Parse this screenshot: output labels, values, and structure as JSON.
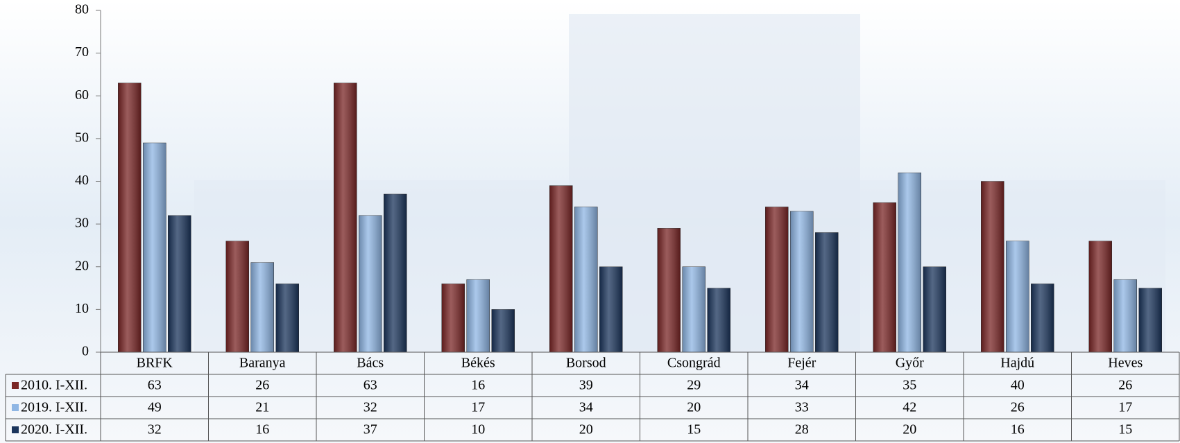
{
  "chart_data": {
    "type": "bar",
    "categories": [
      "BRFK",
      "Baranya",
      "Bács",
      "Békés",
      "Borsod",
      "Csongrád",
      "Fejér",
      "Győr",
      "Hajdú",
      "Heves"
    ],
    "series": [
      {
        "name": "2010. I-XII.",
        "color": "#7a2626",
        "values": [
          63,
          26,
          63,
          16,
          39,
          29,
          34,
          35,
          40,
          26
        ]
      },
      {
        "name": "2019. I-XII.",
        "color": "#8fb6e4",
        "values": [
          49,
          21,
          32,
          17,
          34,
          20,
          33,
          42,
          26,
          17
        ]
      },
      {
        "name": "2020. I-XII.",
        "color": "#1b355c",
        "values": [
          32,
          16,
          37,
          10,
          20,
          15,
          28,
          20,
          16,
          15
        ]
      }
    ],
    "ylim": [
      0,
      80
    ],
    "yticks": [
      0,
      10,
      20,
      30,
      40,
      50,
      60,
      70,
      80
    ],
    "grid": false
  }
}
